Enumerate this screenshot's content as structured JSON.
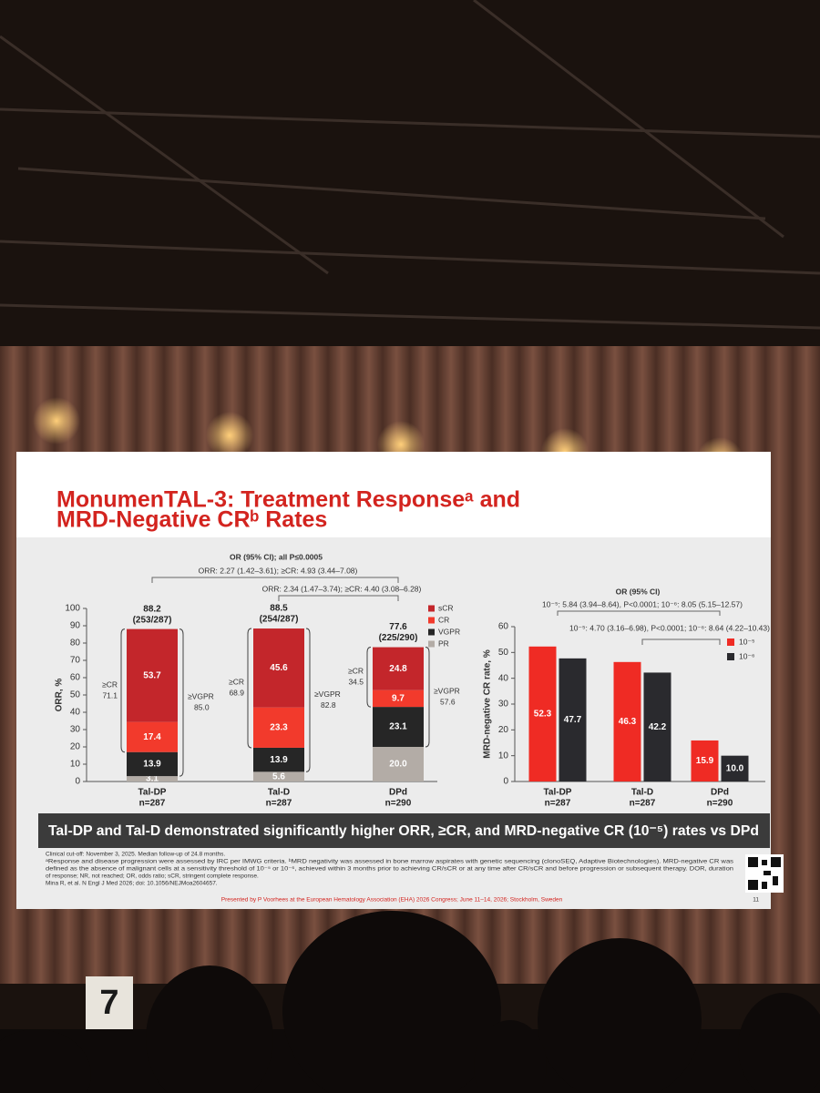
{
  "slide": {
    "title": [
      "MonumenTAL-3: Treatment Responseᵃ and",
      "MRD-Negative CRᵇ Rates"
    ],
    "banner": "Tal-DP and Tal-D demonstrated significantly higher ORR, ≥CR, and MRD-negative CR (10⁻⁵) rates vs DPd",
    "footnotes": [
      "Clinical cut-off: November 3, 2025. Median follow-up of 24.8 months.",
      "ᵃResponse and disease progression were assessed by IRC per IMWG criteria. ᵇMRD negativity was assessed in bone marrow aspirates with genetic sequencing (clonoSEQ, Adaptive Biotechnologies). MRD-negative CR was",
      "defined as the absence of malignant cells at a sensitivity threshold of 10⁻⁵ or 10⁻⁶, achieved within 3 months prior to achieving CR/sCR or at any time after CR/sCR and before progression or subsequent therapy. DOR, duration",
      "of response; NR, not reached; OR, odds ratio; sCR, stringent complete response.",
      "Mina R, et al. N Engl J Med 2026; doi: 10.1056/NEJMoa2604657."
    ],
    "presenter": "Presented by P Voorhees at the European Hematology Association (EHA) 2026 Congress; June 11–14, 2026; Stockholm, Sweden",
    "page_number": "11"
  },
  "room_sign": "7",
  "chart_data": [
    {
      "type": "stacked_bar",
      "ylabel": "ORR, %",
      "ylim": [
        0,
        100
      ],
      "yticks": [
        0,
        10,
        20,
        30,
        40,
        50,
        60,
        70,
        80,
        90,
        100
      ],
      "categories": [
        "Tal-DP",
        "Tal-D",
        "DPd"
      ],
      "category_sublabels": [
        "n=287",
        "n=287",
        "n=290"
      ],
      "series": [
        {
          "name": "PR",
          "color": "#b3aca6",
          "values": [
            3.1,
            5.6,
            20.0
          ],
          "value_labels": [
            "3.1",
            "5.6",
            "20.0"
          ]
        },
        {
          "name": "VGPR",
          "color": "#262626",
          "values": [
            13.9,
            13.9,
            23.1
          ]
        },
        {
          "name": "CR",
          "color": "#f23a2c",
          "values": [
            17.4,
            23.3,
            9.7
          ]
        },
        {
          "name": "sCR",
          "color": "#c3262b",
          "values": [
            53.7,
            45.6,
            24.8
          ]
        }
      ],
      "totals": [
        88.2,
        88.5,
        77.6
      ],
      "total_counts": [
        "(253/287)",
        "(254/287)",
        "(225/290)"
      ],
      "cr_label": "≥CR",
      "cr_totals": [
        71.1,
        68.9,
        34.5
      ],
      "vgpr_label": "≥VGPR",
      "vgpr_totals": [
        {
          "value": 85,
          "label": "85.0"
        },
        82.8,
        57.6
      ],
      "annotations": [
        "OR (95% CI); all P≤0.0005",
        "ORR: 2.27 (1.42–3.61); ≥CR: 4.93 (3.44–7.08)",
        "ORR: 2.34 (1.47–3.74); ≥CR: 4.40 (3.08–6.28)"
      ]
    },
    {
      "type": "grouped_bar",
      "ylabel": "MRD-negative CR rate, %",
      "ylim": [
        0,
        60
      ],
      "yticks": [
        0,
        10,
        20,
        30,
        40,
        50,
        60
      ],
      "categories": [
        "Tal-DP",
        "Tal-D",
        "DPd"
      ],
      "category_sublabels": [
        "n=287",
        "n=287",
        "n=290"
      ],
      "series": [
        {
          "name": "10⁻⁵",
          "color": "#ef2b24",
          "values": [
            52.3,
            46.3,
            15.9
          ]
        },
        {
          "name": "10⁻⁶",
          "color": "#2a2a2e",
          "values": [
            47.7,
            42.2,
            10.0
          ],
          "value_labels": [
            "47.7",
            "42.2",
            "10.0"
          ]
        }
      ],
      "annotations": [
        "OR (95% CI)",
        "10⁻⁵: 5.84 (3.94–8.64), P<0.0001; 10⁻⁶: 8.05 (5.15–12.57)",
        "10⁻⁵: 4.70 (3.16–6.98), P<0.0001; 10⁻⁶: 8.64 (4.22–10.43)"
      ]
    }
  ]
}
